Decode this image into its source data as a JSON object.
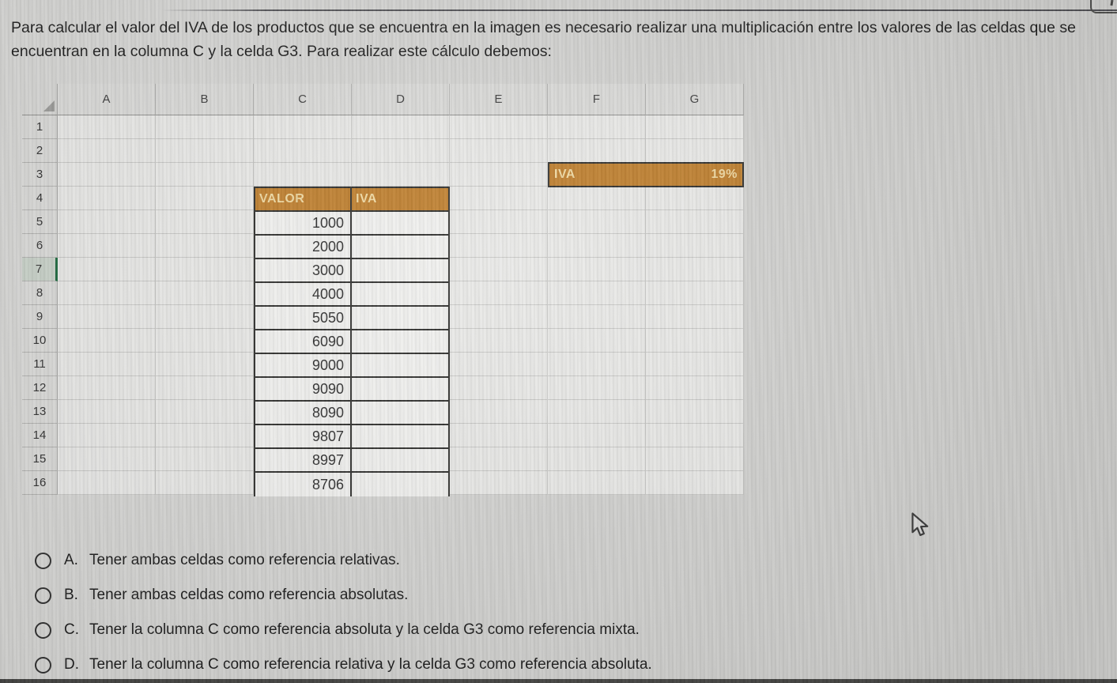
{
  "question": {
    "text": "Para calcular el valor del IVA de los productos que se encuentra en la imagen es necesario realizar una multiplicación entre los valores de las celdas que se encuentran en la columna C y la celda G3. Para realizar este cálculo debemos:"
  },
  "spreadsheet": {
    "column_headers": [
      "A",
      "B",
      "C",
      "D",
      "E",
      "F",
      "G"
    ],
    "row_headers": [
      "1",
      "2",
      "3",
      "4",
      "5",
      "6",
      "7",
      "8",
      "9",
      "10",
      "11",
      "12",
      "13",
      "14",
      "15",
      "16"
    ],
    "selected_row": "7",
    "valor_table": {
      "headers": [
        "VALOR",
        "IVA"
      ],
      "values": [
        1000,
        2000,
        3000,
        4000,
        5050,
        6090,
        9000,
        9090,
        8090,
        9807,
        8997,
        8706
      ]
    },
    "iva_rate_cells": {
      "label": "IVA",
      "rate": "19%"
    },
    "colors": {
      "accent": "#bf7f2e",
      "accent_text": "#f0d9a2",
      "selected_row_marker": "#1e6b40"
    }
  },
  "options": [
    {
      "letter": "A.",
      "text": "Tener ambas celdas como referencia relativas."
    },
    {
      "letter": "B.",
      "text": "Tener ambas celdas como referencia absolutas."
    },
    {
      "letter": "C.",
      "text": "Tener la columna C  como referencia absoluta y la celda G3 como referencia mixta."
    },
    {
      "letter": "D.",
      "text": "Tener la columna C  como referencia relativa y la celda G3 como referencia absoluta."
    }
  ],
  "icons": {
    "cursor": "arrow-pointer",
    "select_all": "corner-triangle"
  }
}
